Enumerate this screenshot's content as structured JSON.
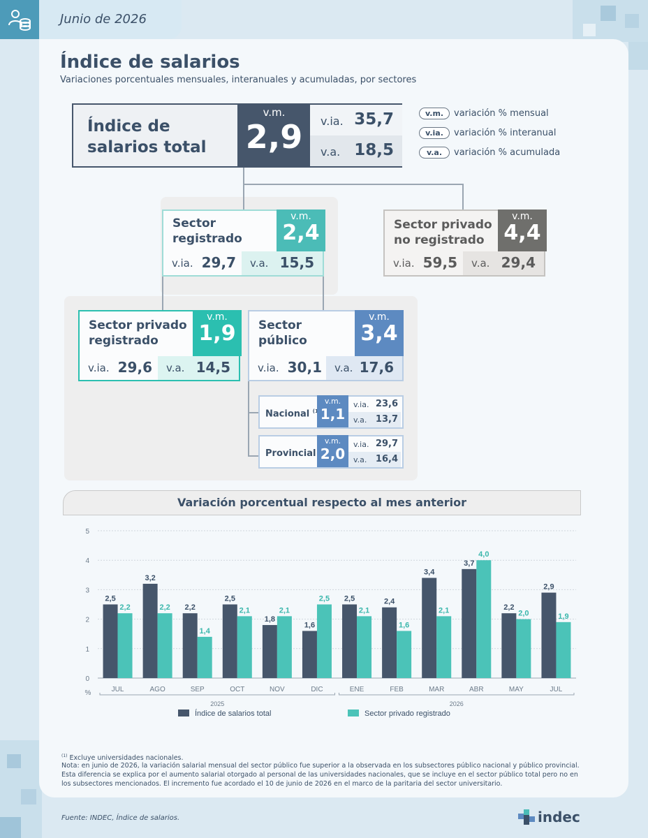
{
  "header": {
    "date": "Junio de 2026"
  },
  "title": "Índice de salarios",
  "subtitle": "Variaciones porcentuales mensuales, interanuales y acumuladas, por sectores",
  "main": {
    "label_line1": "Índice de",
    "label_line2": "salarios total",
    "vm_label": "v.m.",
    "vm": "2,9",
    "via_label": "v.ia.",
    "via": "35,7",
    "va_label": "v.a.",
    "va": "18,5"
  },
  "legend": [
    {
      "key": "v.m.",
      "text": "variación % mensual"
    },
    {
      "key": "v.ia.",
      "text": "variación % interanual"
    },
    {
      "key": "v.a.",
      "text": "variación % acumulada"
    }
  ],
  "sectors": {
    "registrado": {
      "line1": "Sector",
      "line2": "registrado",
      "vm_label": "v.m.",
      "vm": "2,4",
      "via_label": "v.ia.",
      "via": "29,7",
      "va_label": "v.a.",
      "va": "15,5",
      "color": "#4bbcb7"
    },
    "no_registrado": {
      "line1": "Sector privado",
      "line2": "no registrado",
      "vm_label": "v.m.",
      "vm": "4,4",
      "via_label": "v.ia.",
      "via": "59,5",
      "va_label": "v.a.",
      "va": "29,4",
      "color": "#6f6f6c"
    },
    "privado_registrado": {
      "line1": "Sector privado",
      "line2": "registrado",
      "vm_label": "v.m.",
      "vm": "1,9",
      "via_label": "v.ia.",
      "via": "29,6",
      "va_label": "v.a.",
      "va": "14,5",
      "color": "#2bbfb0"
    },
    "publico": {
      "line1": "Sector",
      "line2": "público",
      "vm_label": "v.m.",
      "vm": "3,4",
      "via_label": "v.ia.",
      "via": "30,1",
      "va_label": "v.a.",
      "va": "17,6",
      "color": "#5d8ac1"
    }
  },
  "subsectors": {
    "nacional": {
      "label": "Nacional",
      "mark": "(1)",
      "vm_label": "v.m.",
      "vm": "1,1",
      "via_label": "v.ia.",
      "via": "23,6",
      "va_label": "v.a.",
      "va": "13,7"
    },
    "provincial": {
      "label": "Provincial",
      "vm_label": "v.m.",
      "vm": "2,0",
      "via_label": "v.ia.",
      "via": "29,7",
      "va_label": "v.a.",
      "va": "16,4"
    }
  },
  "chart_title": "Variación porcentual respecto al mes anterior",
  "chart_data": {
    "type": "bar",
    "categories": [
      "JUL",
      "AGO",
      "SEP",
      "OCT",
      "NOV",
      "DIC",
      "ENE",
      "FEB",
      "MAR",
      "ABR",
      "MAY",
      "JUL"
    ],
    "year_groups": [
      {
        "label": "2025",
        "from": 0,
        "to": 5
      },
      {
        "label": "2026",
        "from": 6,
        "to": 11
      }
    ],
    "series": [
      {
        "name": "Índice de salarios total",
        "color": "#46566b",
        "values": [
          2.5,
          3.2,
          2.2,
          2.5,
          1.8,
          1.6,
          2.5,
          2.4,
          3.4,
          3.7,
          2.2,
          2.9
        ],
        "labels": [
          "2,5",
          "3,2",
          "2,2",
          "2,5",
          "1,8",
          "1,6",
          "2,5",
          "2,4",
          "3,4",
          "3,7",
          "2,2",
          "2,9"
        ]
      },
      {
        "name": "Sector privado registrado",
        "color": "#4bc3b8",
        "values": [
          2.2,
          2.2,
          1.4,
          2.1,
          2.1,
          2.5,
          2.1,
          1.6,
          2.1,
          4.0,
          2.0,
          1.9
        ],
        "labels": [
          "2,2",
          "2,2",
          "1,4",
          "2,1",
          "2,1",
          "2,5",
          "2,1",
          "1,6",
          "2,1",
          "4,0",
          "2,0",
          "1,9"
        ]
      }
    ],
    "ylim": [
      0,
      5
    ],
    "yticks": [
      "0",
      "1",
      "2",
      "3",
      "4",
      "5"
    ],
    "ylabel": "%",
    "grid": true,
    "legend_position": "bottom"
  },
  "footnotes": {
    "note1": "Excluye universidades nacionales.",
    "note1_mark": "(1)",
    "note2": "Nota: en junio de 2026, la variación salarial mensual del sector público fue superior a la observada en los subsectores público nacional y público provincial. Esta diferencia se explica por el aumento salarial otorgado al personal de las universidades nacionales, que se incluye en el sector público total pero no en los subsectores mencionados. El incremento fue acordado el 10 de junio de 2026 en el marco de la paritaria del sector universitario."
  },
  "source": "Fuente: INDEC, Índice de salarios.",
  "logo_text": "indec"
}
